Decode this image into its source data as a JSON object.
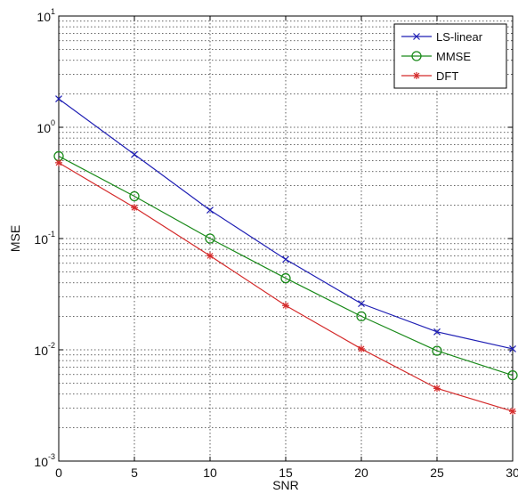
{
  "chart_data": {
    "type": "line",
    "title": "",
    "xlabel": "SNR",
    "ylabel": "MSE",
    "x": [
      0,
      5,
      10,
      15,
      20,
      25,
      30
    ],
    "xlim": [
      0,
      30
    ],
    "ylim": [
      0.001,
      10
    ],
    "yscale": "log",
    "xticks": [
      "0",
      "5",
      "10",
      "15",
      "20",
      "25",
      "30"
    ],
    "yticks": [
      {
        "base": "10",
        "exp": "-3"
      },
      {
        "base": "10",
        "exp": "-2"
      },
      {
        "base": "10",
        "exp": "-1"
      },
      {
        "base": "10",
        "exp": "0"
      },
      {
        "base": "10",
        "exp": "1"
      }
    ],
    "grid": true,
    "legend_position": "top-right",
    "series": [
      {
        "name": "LS-linear",
        "color": "#1f1fb4",
        "marker": "x",
        "values": [
          1.8,
          0.57,
          0.18,
          0.065,
          0.026,
          0.0145,
          0.0102
        ]
      },
      {
        "name": "MMSE",
        "color": "#1a8a1a",
        "marker": "o",
        "values": [
          0.55,
          0.24,
          0.1,
          0.044,
          0.02,
          0.0098,
          0.0059
        ]
      },
      {
        "name": "DFT",
        "color": "#d42a2a",
        "marker": "*",
        "values": [
          0.48,
          0.19,
          0.07,
          0.025,
          0.0102,
          0.0045,
          0.0028
        ]
      }
    ]
  }
}
